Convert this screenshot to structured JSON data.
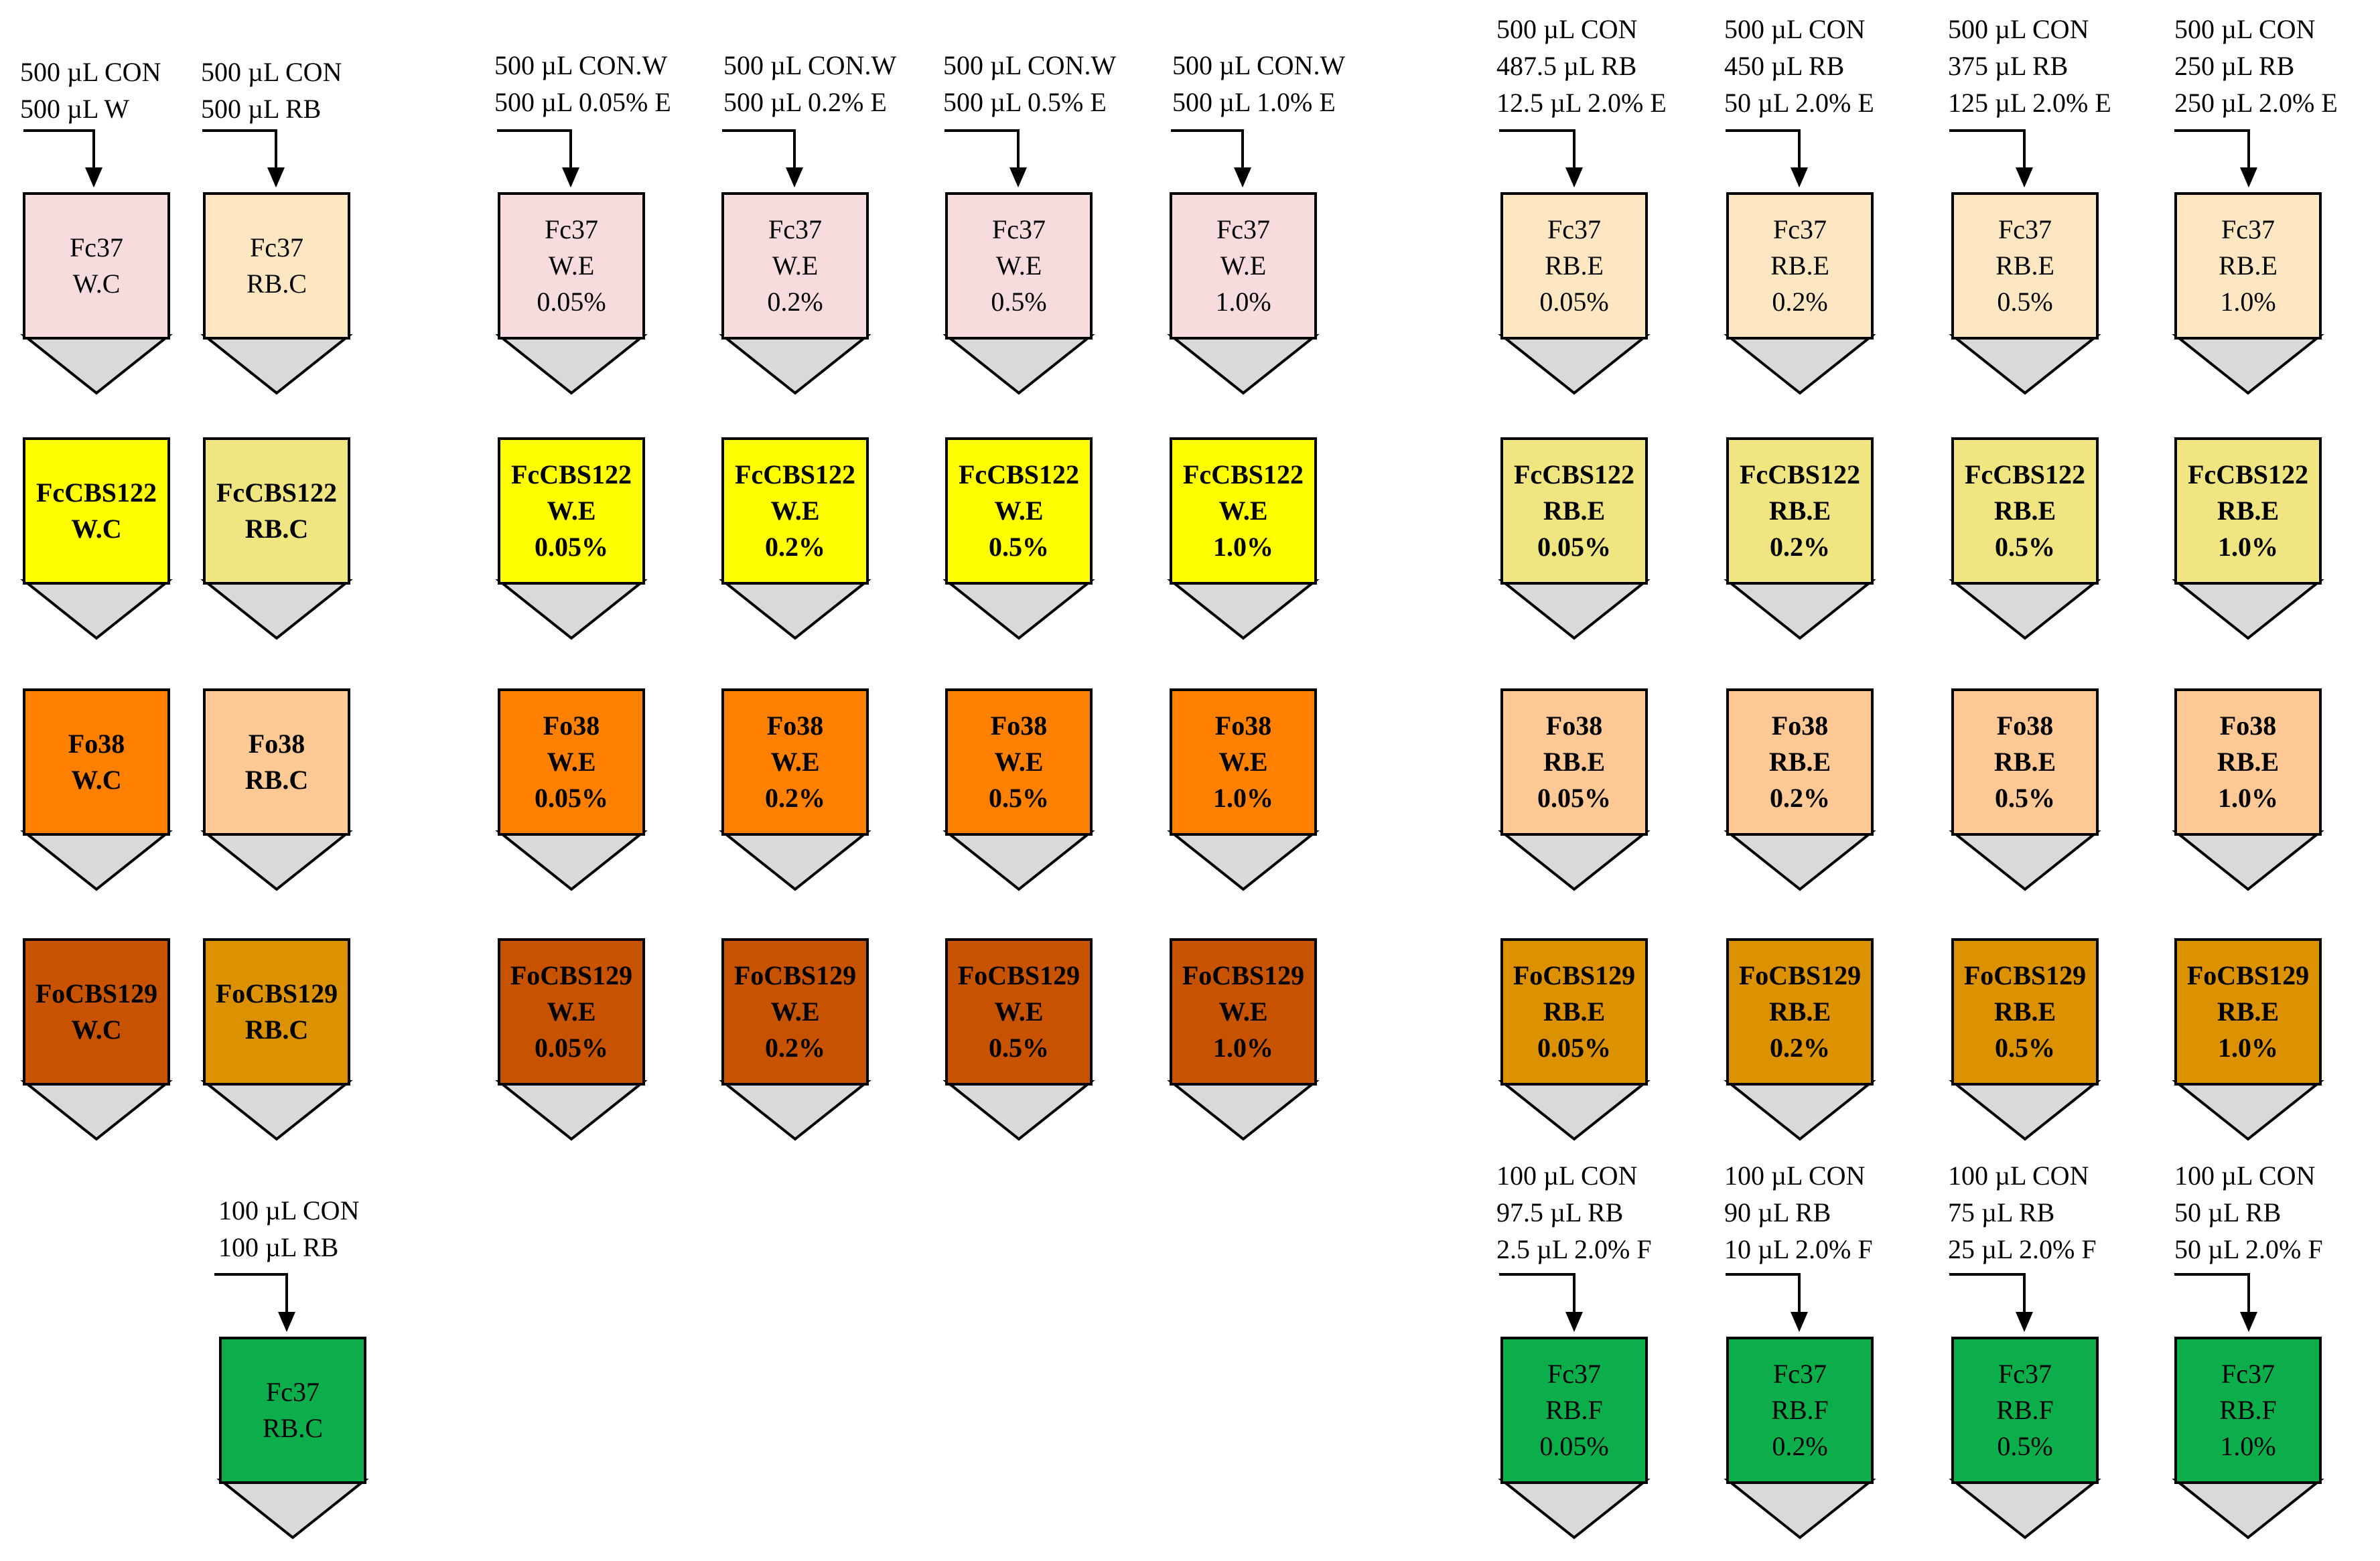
{
  "colors": {
    "pink": "#f6dcdc",
    "beige": "#fde7c2",
    "yellow": "#fefe00",
    "khaki": "#efe681",
    "orange": "#fe8001",
    "peach": "#fec994",
    "rust": "#c75300",
    "gold": "#db9100",
    "green": "#0bae4b",
    "tip": "#d9d9d9",
    "outline": "#000000"
  },
  "labels": [
    {
      "id": "a",
      "lines": [
        "500 µL CON",
        "500 µL W"
      ]
    },
    {
      "id": "b",
      "lines": [
        "500 µL CON",
        "500 µL RB"
      ]
    },
    {
      "id": "c",
      "lines": [
        "500 µL CON.W",
        "500 µL 0.05% E"
      ]
    },
    {
      "id": "d",
      "lines": [
        "500 µL CON.W",
        "500 µL 0.2% E"
      ]
    },
    {
      "id": "e",
      "lines": [
        "500 µL CON.W",
        "500 µL 0.5% E"
      ]
    },
    {
      "id": "f",
      "lines": [
        "500 µL CON.W",
        "500 µL 1.0% E"
      ]
    },
    {
      "id": "g",
      "lines": [
        "500 µL CON",
        "487.5 µL RB",
        "12.5 µL 2.0% E"
      ]
    },
    {
      "id": "h",
      "lines": [
        "500 µL CON",
        "450 µL RB",
        "50 µL 2.0% E"
      ]
    },
    {
      "id": "i",
      "lines": [
        "500 µL CON",
        "375 µL RB",
        "125 µL 2.0% E"
      ]
    },
    {
      "id": "j",
      "lines": [
        "500 µL CON",
        "250 µL RB",
        "250 µL 2.0% E"
      ]
    },
    {
      "id": "k",
      "lines": [
        "100 µL CON",
        "100 µL RB"
      ]
    },
    {
      "id": "l",
      "lines": [
        "100 µL CON",
        "97.5 µL RB",
        "2.5 µL 2.0% F"
      ]
    },
    {
      "id": "m",
      "lines": [
        "100 µL CON",
        "90 µL RB",
        "10 µL 2.0% F"
      ]
    },
    {
      "id": "n",
      "lines": [
        "100 µL CON",
        "75 µL RB",
        "25 µL 2.0% F"
      ]
    },
    {
      "id": "o",
      "lines": [
        "100 µL CON",
        "50 µL RB",
        "50 µL 2.0% F"
      ]
    }
  ],
  "tubes": [
    {
      "lines": [
        "Fc37",
        "W.C"
      ],
      "color": "pink",
      "bold": false
    },
    {
      "lines": [
        "Fc37",
        "RB.C"
      ],
      "color": "beige",
      "bold": false
    },
    {
      "lines": [
        "Fc37",
        "W.E",
        "0.05%"
      ],
      "color": "pink",
      "bold": false
    },
    {
      "lines": [
        "Fc37",
        "W.E",
        "0.2%"
      ],
      "color": "pink",
      "bold": false
    },
    {
      "lines": [
        "Fc37",
        "W.E",
        "0.5%"
      ],
      "color": "pink",
      "bold": false
    },
    {
      "lines": [
        "Fc37",
        "W.E",
        "1.0%"
      ],
      "color": "pink",
      "bold": false
    },
    {
      "lines": [
        "Fc37",
        "RB.E",
        "0.05%"
      ],
      "color": "beige",
      "bold": false
    },
    {
      "lines": [
        "Fc37",
        "RB.E",
        "0.2%"
      ],
      "color": "beige",
      "bold": false
    },
    {
      "lines": [
        "Fc37",
        "RB.E",
        "0.5%"
      ],
      "color": "beige",
      "bold": false
    },
    {
      "lines": [
        "Fc37",
        "RB.E",
        "1.0%"
      ],
      "color": "beige",
      "bold": false
    },
    {
      "lines": [
        "FcCBS122",
        "W.C"
      ],
      "color": "yellow",
      "bold": true
    },
    {
      "lines": [
        "FcCBS122",
        "RB.C"
      ],
      "color": "khaki",
      "bold": true
    },
    {
      "lines": [
        "FcCBS122",
        "W.E",
        "0.05%"
      ],
      "color": "yellow",
      "bold": true
    },
    {
      "lines": [
        "FcCBS122",
        "W.E",
        "0.2%"
      ],
      "color": "yellow",
      "bold": true
    },
    {
      "lines": [
        "FcCBS122",
        "W.E",
        "0.5%"
      ],
      "color": "yellow",
      "bold": true
    },
    {
      "lines": [
        "FcCBS122",
        "W.E",
        "1.0%"
      ],
      "color": "yellow",
      "bold": true
    },
    {
      "lines": [
        "FcCBS122",
        "RB.E",
        "0.05%"
      ],
      "color": "khaki",
      "bold": true
    },
    {
      "lines": [
        "FcCBS122",
        "RB.E",
        "0.2%"
      ],
      "color": "khaki",
      "bold": true
    },
    {
      "lines": [
        "FcCBS122",
        "RB.E",
        "0.5%"
      ],
      "color": "khaki",
      "bold": true
    },
    {
      "lines": [
        "FcCBS122",
        "RB.E",
        "1.0%"
      ],
      "color": "khaki",
      "bold": true
    },
    {
      "lines": [
        "Fo38",
        "W.C"
      ],
      "color": "orange",
      "bold": true
    },
    {
      "lines": [
        "Fo38",
        "RB.C"
      ],
      "color": "peach",
      "bold": true
    },
    {
      "lines": [
        "Fo38",
        "W.E",
        "0.05%"
      ],
      "color": "orange",
      "bold": true
    },
    {
      "lines": [
        "Fo38",
        "W.E",
        "0.2%"
      ],
      "color": "orange",
      "bold": true
    },
    {
      "lines": [
        "Fo38",
        "W.E",
        "0.5%"
      ],
      "color": "orange",
      "bold": true
    },
    {
      "lines": [
        "Fo38",
        "W.E",
        "1.0%"
      ],
      "color": "orange",
      "bold": true
    },
    {
      "lines": [
        "Fo38",
        "RB.E",
        "0.05%"
      ],
      "color": "peach",
      "bold": true
    },
    {
      "lines": [
        "Fo38",
        "RB.E",
        "0.2%"
      ],
      "color": "peach",
      "bold": true
    },
    {
      "lines": [
        "Fo38",
        "RB.E",
        "0.5%"
      ],
      "color": "peach",
      "bold": true
    },
    {
      "lines": [
        "Fo38",
        "RB.E",
        "1.0%"
      ],
      "color": "peach",
      "bold": true
    },
    {
      "lines": [
        "FoCBS129",
        "W.C"
      ],
      "color": "rust",
      "bold": true
    },
    {
      "lines": [
        "FoCBS129",
        "RB.C"
      ],
      "color": "gold",
      "bold": true
    },
    {
      "lines": [
        "FoCBS129",
        "W.E",
        "0.05%"
      ],
      "color": "rust",
      "bold": true
    },
    {
      "lines": [
        "FoCBS129",
        "W.E",
        "0.2%"
      ],
      "color": "rust",
      "bold": true
    },
    {
      "lines": [
        "FoCBS129",
        "W.E",
        "0.5%"
      ],
      "color": "rust",
      "bold": true
    },
    {
      "lines": [
        "FoCBS129",
        "W.E",
        "1.0%"
      ],
      "color": "rust",
      "bold": true
    },
    {
      "lines": [
        "FoCBS129",
        "RB.E",
        "0.05%"
      ],
      "color": "gold",
      "bold": true
    },
    {
      "lines": [
        "FoCBS129",
        "RB.E",
        "0.2%"
      ],
      "color": "gold",
      "bold": true
    },
    {
      "lines": [
        "FoCBS129",
        "RB.E",
        "0.5%"
      ],
      "color": "gold",
      "bold": true
    },
    {
      "lines": [
        "FoCBS129",
        "RB.E",
        "1.0%"
      ],
      "color": "gold",
      "bold": true
    },
    {
      "lines": [
        "Fc37",
        "RB.C"
      ],
      "color": "green",
      "bold": false
    },
    {
      "lines": [
        "Fc37",
        "RB.F",
        "0.05%"
      ],
      "color": "green",
      "bold": false
    },
    {
      "lines": [
        "Fc37",
        "RB.F",
        "0.2%"
      ],
      "color": "green",
      "bold": false
    },
    {
      "lines": [
        "Fc37",
        "RB.F",
        "0.5%"
      ],
      "color": "green",
      "bold": false
    },
    {
      "lines": [
        "Fc37",
        "RB.F",
        "1.0%"
      ],
      "color": "green",
      "bold": false
    }
  ]
}
